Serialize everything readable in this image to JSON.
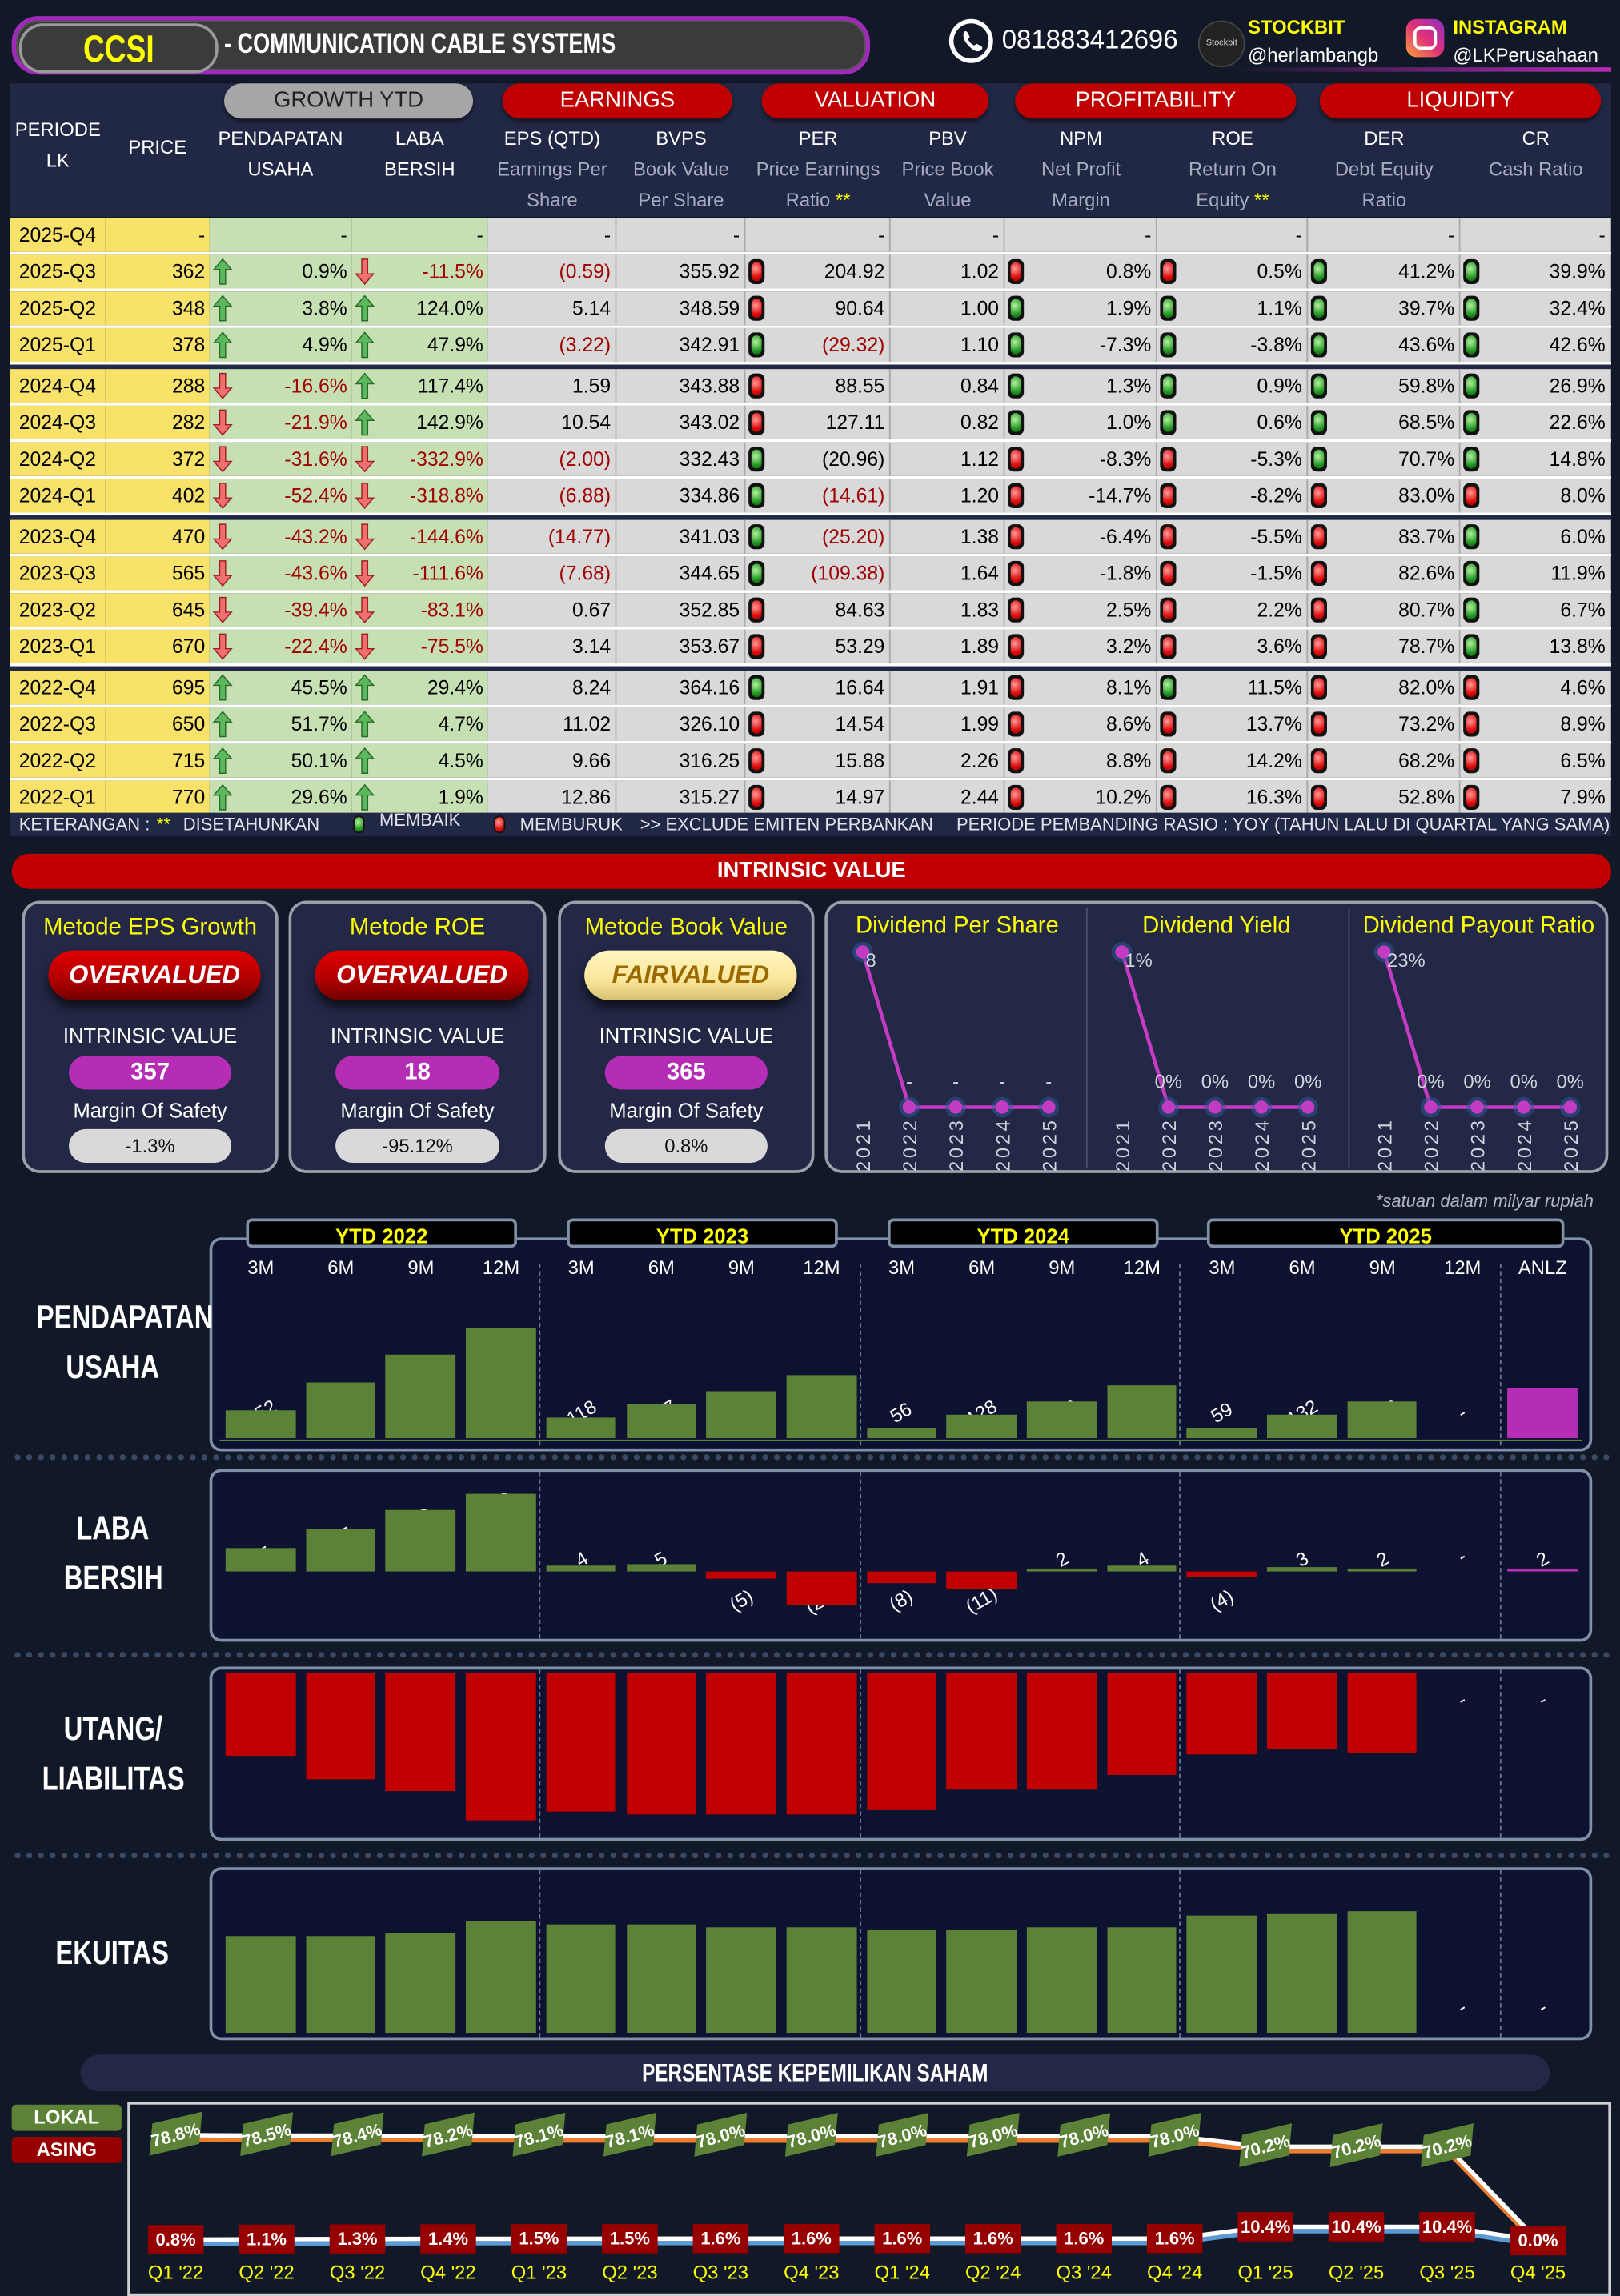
{
  "header": {
    "ticker": "CCSI",
    "company": "- COMMUNICATION CABLE SYSTEMS",
    "phone": "081883412696",
    "stockbit_label": "STOCKBIT",
    "stockbit_handle": "@herlambangb",
    "instagram_label": "INSTAGRAM",
    "instagram_handle": "@LKPerusahaan"
  },
  "table": {
    "groups": [
      "GROWTH YTD",
      "EARNINGS",
      "VALUATION",
      "PROFITABILITY",
      "LIQUIDITY"
    ],
    "columns": [
      {
        "t": "PERIODE",
        "t2": "LK",
        "s": ""
      },
      {
        "t": "PRICE",
        "t2": "",
        "s": ""
      },
      {
        "t": "PENDAPATAN",
        "t2": "USAHA",
        "s": ""
      },
      {
        "t": "LABA",
        "t2": "BERSIH",
        "s": ""
      },
      {
        "t": "EPS (QTD)",
        "s": "Earnings Per",
        "s2": "Share",
        "star": ""
      },
      {
        "t": "BVPS",
        "s": "Book Value",
        "s2": "Per Share",
        "star": ""
      },
      {
        "t": "PER",
        "s": "Price Earnings",
        "s2": "Ratio",
        "star": "**"
      },
      {
        "t": "PBV",
        "s": "Price Book",
        "s2": "Value",
        "star": ""
      },
      {
        "t": "NPM",
        "s": "Net Profit",
        "s2": "Margin",
        "star": ""
      },
      {
        "t": "ROE",
        "s": "Return On",
        "s2": "Equity",
        "star": "**"
      },
      {
        "t": "DER",
        "s": "Debt Equity",
        "s2": "Ratio",
        "star": ""
      },
      {
        "t": "CR",
        "s": "Cash Ratio",
        "s2": "",
        "star": ""
      }
    ],
    "rows": [
      {
        "p": "2025-Q4",
        "price": "-",
        "pend": [
          "",
          "-"
        ],
        "laba": [
          "",
          "-"
        ],
        "eps": "-",
        "bvps": "-",
        "per": [
          "",
          "-"
        ],
        "pbv": "-",
        "npm": [
          "",
          "-"
        ],
        "roe": [
          "",
          "-"
        ],
        "der": [
          "",
          "-"
        ],
        "cr": [
          "",
          "-"
        ]
      },
      {
        "p": "2025-Q3",
        "price": "362",
        "pend": [
          "up",
          "0.9%"
        ],
        "laba": [
          "down",
          "-11.5%"
        ],
        "eps": "(0.59)",
        "bvps": "355.92",
        "per": [
          "r",
          "204.92"
        ],
        "pbv": "1.02",
        "npm": [
          "r",
          "0.8%"
        ],
        "roe": [
          "r",
          "0.5%"
        ],
        "der": [
          "g",
          "41.2%"
        ],
        "cr": [
          "g",
          "39.9%"
        ]
      },
      {
        "p": "2025-Q2",
        "price": "348",
        "pend": [
          "up",
          "3.8%"
        ],
        "laba": [
          "up",
          "124.0%"
        ],
        "eps": "5.14",
        "bvps": "348.59",
        "per": [
          "r",
          "90.64"
        ],
        "pbv": "1.00",
        "npm": [
          "g",
          "1.9%"
        ],
        "roe": [
          "g",
          "1.1%"
        ],
        "der": [
          "g",
          "39.7%"
        ],
        "cr": [
          "g",
          "32.4%"
        ]
      },
      {
        "p": "2025-Q1",
        "price": "378",
        "pend": [
          "up",
          "4.9%"
        ],
        "laba": [
          "up",
          "47.9%"
        ],
        "eps": "(3.22)",
        "bvps": "342.91",
        "per": [
          "g",
          "(29.32)"
        ],
        "pbv": "1.10",
        "npm": [
          "g",
          "-7.3%"
        ],
        "roe": [
          "g",
          "-3.8%"
        ],
        "der": [
          "g",
          "43.6%"
        ],
        "cr": [
          "g",
          "42.6%"
        ]
      },
      {
        "p": "2024-Q4",
        "price": "288",
        "pend": [
          "down",
          "-16.6%"
        ],
        "laba": [
          "up",
          "117.4%"
        ],
        "eps": "1.59",
        "bvps": "343.88",
        "per": [
          "r",
          "88.55"
        ],
        "pbv": "0.84",
        "npm": [
          "g",
          "1.3%"
        ],
        "roe": [
          "g",
          "0.9%"
        ],
        "der": [
          "g",
          "59.8%"
        ],
        "cr": [
          "g",
          "26.9%"
        ]
      },
      {
        "p": "2024-Q3",
        "price": "282",
        "pend": [
          "down",
          "-21.9%"
        ],
        "laba": [
          "up",
          "142.9%"
        ],
        "eps": "10.54",
        "bvps": "343.02",
        "per": [
          "r",
          "127.11"
        ],
        "pbv": "0.82",
        "npm": [
          "g",
          "1.0%"
        ],
        "roe": [
          "g",
          "0.6%"
        ],
        "der": [
          "g",
          "68.5%"
        ],
        "cr": [
          "g",
          "22.6%"
        ]
      },
      {
        "p": "2024-Q2",
        "price": "372",
        "pend": [
          "down",
          "-31.6%"
        ],
        "laba": [
          "down",
          "-332.9%"
        ],
        "eps": "(2.00)",
        "bvps": "332.43",
        "per": [
          "g",
          "(20.96)"
        ],
        "pbv": "1.12",
        "npm": [
          "r",
          "-8.3%"
        ],
        "roe": [
          "r",
          "-5.3%"
        ],
        "der": [
          "g",
          "70.7%"
        ],
        "cr": [
          "g",
          "14.8%"
        ]
      },
      {
        "p": "2024-Q1",
        "price": "402",
        "pend": [
          "down",
          "-52.4%"
        ],
        "laba": [
          "down",
          "-318.8%"
        ],
        "eps": "(6.88)",
        "bvps": "334.86",
        "per": [
          "g",
          "(14.61)"
        ],
        "pbv": "1.20",
        "npm": [
          "r",
          "-14.7%"
        ],
        "roe": [
          "r",
          "-8.2%"
        ],
        "der": [
          "r",
          "83.0%"
        ],
        "cr": [
          "r",
          "8.0%"
        ]
      },
      {
        "p": "2023-Q4",
        "price": "470",
        "pend": [
          "down",
          "-43.2%"
        ],
        "laba": [
          "down",
          "-144.6%"
        ],
        "eps": "(14.77)",
        "bvps": "341.03",
        "per": [
          "g",
          "(25.20)"
        ],
        "pbv": "1.38",
        "npm": [
          "r",
          "-6.4%"
        ],
        "roe": [
          "r",
          "-5.5%"
        ],
        "der": [
          "r",
          "83.7%"
        ],
        "cr": [
          "g",
          "6.0%"
        ]
      },
      {
        "p": "2023-Q3",
        "price": "565",
        "pend": [
          "down",
          "-43.6%"
        ],
        "laba": [
          "down",
          "-111.6%"
        ],
        "eps": "(7.68)",
        "bvps": "344.65",
        "per": [
          "g",
          "(109.38)"
        ],
        "pbv": "1.64",
        "npm": [
          "r",
          "-1.8%"
        ],
        "roe": [
          "r",
          "-1.5%"
        ],
        "der": [
          "r",
          "82.6%"
        ],
        "cr": [
          "g",
          "11.9%"
        ]
      },
      {
        "p": "2023-Q2",
        "price": "645",
        "pend": [
          "down",
          "-39.4%"
        ],
        "laba": [
          "down",
          "-83.1%"
        ],
        "eps": "0.67",
        "bvps": "352.85",
        "per": [
          "r",
          "84.63"
        ],
        "pbv": "1.83",
        "npm": [
          "r",
          "2.5%"
        ],
        "roe": [
          "r",
          "2.2%"
        ],
        "der": [
          "r",
          "80.7%"
        ],
        "cr": [
          "g",
          "6.7%"
        ]
      },
      {
        "p": "2023-Q1",
        "price": "670",
        "pend": [
          "down",
          "-22.4%"
        ],
        "laba": [
          "down",
          "-75.5%"
        ],
        "eps": "3.14",
        "bvps": "353.67",
        "per": [
          "r",
          "53.29"
        ],
        "pbv": "1.89",
        "npm": [
          "r",
          "3.2%"
        ],
        "roe": [
          "r",
          "3.6%"
        ],
        "der": [
          "r",
          "78.7%"
        ],
        "cr": [
          "g",
          "13.8%"
        ]
      },
      {
        "p": "2022-Q4",
        "price": "695",
        "pend": [
          "up",
          "45.5%"
        ],
        "laba": [
          "up",
          "29.4%"
        ],
        "eps": "8.24",
        "bvps": "364.16",
        "per": [
          "g",
          "16.64"
        ],
        "pbv": "1.91",
        "npm": [
          "r",
          "8.1%"
        ],
        "roe": [
          "g",
          "11.5%"
        ],
        "der": [
          "r",
          "82.0%"
        ],
        "cr": [
          "r",
          "4.6%"
        ]
      },
      {
        "p": "2022-Q3",
        "price": "650",
        "pend": [
          "up",
          "51.7%"
        ],
        "laba": [
          "up",
          "4.7%"
        ],
        "eps": "11.02",
        "bvps": "326.10",
        "per": [
          "r",
          "14.54"
        ],
        "pbv": "1.99",
        "npm": [
          "r",
          "8.6%"
        ],
        "roe": [
          "r",
          "13.7%"
        ],
        "der": [
          "r",
          "73.2%"
        ],
        "cr": [
          "r",
          "8.9%"
        ]
      },
      {
        "p": "2022-Q2",
        "price": "715",
        "pend": [
          "up",
          "50.1%"
        ],
        "laba": [
          "up",
          "4.5%"
        ],
        "eps": "9.66",
        "bvps": "316.25",
        "per": [
          "r",
          "15.88"
        ],
        "pbv": "2.26",
        "npm": [
          "r",
          "8.8%"
        ],
        "roe": [
          "r",
          "14.2%"
        ],
        "der": [
          "r",
          "68.2%"
        ],
        "cr": [
          "r",
          "6.5%"
        ]
      },
      {
        "p": "2022-Q1",
        "price": "770",
        "pend": [
          "up",
          "29.6%"
        ],
        "laba": [
          "up",
          "1.9%"
        ],
        "eps": "12.86",
        "bvps": "315.27",
        "per": [
          "r",
          "14.97"
        ],
        "pbv": "2.44",
        "npm": [
          "r",
          "10.2%"
        ],
        "roe": [
          "r",
          "16.3%"
        ],
        "der": [
          "r",
          "52.8%"
        ],
        "cr": [
          "r",
          "7.9%"
        ]
      }
    ],
    "legend": {
      "keterangan": "KETERANGAN :",
      "stars": "**",
      "disetahunkan": "DISETAHUNKAN",
      "membaik": "MEMBAIK",
      "memburuk": "MEMBURUK",
      "exclude": ">> EXCLUDE EMITEN PERBANKAN",
      "periode": "PERIODE PEMBANDING RASIO : YOY (TAHUN LALU DI QUARTAL YANG SAMA)"
    }
  },
  "intrinsic": {
    "title": "INTRINSIC VALUE",
    "iv_label": "INTRINSIC VALUE",
    "mos_label": "Margin Of Safety",
    "cards": [
      {
        "title": "Metode EPS Growth",
        "status": "OVERVALUED",
        "kind": "over",
        "value": "357",
        "mos": "-1.3%"
      },
      {
        "title": "Metode ROE",
        "status": "OVERVALUED",
        "kind": "over",
        "value": "18",
        "mos": "-95.12%"
      },
      {
        "title": "Metode Book Value",
        "status": "FAIRVALUED",
        "kind": "fair",
        "value": "365",
        "mos": "0.8%"
      }
    ],
    "dividends": [
      {
        "title": "Dividend Per Share",
        "years": [
          "2021",
          "2022",
          "2023",
          "2024",
          "2025"
        ],
        "values": [
          8,
          0,
          0,
          0,
          0
        ],
        "labels": [
          "8",
          "-",
          "-",
          "-",
          "-"
        ]
      },
      {
        "title": "Dividend Yield",
        "years": [
          "2021",
          "2022",
          "2023",
          "2024",
          "2025"
        ],
        "values": [
          1,
          0,
          0,
          0,
          0
        ],
        "labels": [
          "1%",
          "0%",
          "0%",
          "0%",
          "0%"
        ]
      },
      {
        "title": "Dividend Payout Ratio",
        "years": [
          "2021",
          "2022",
          "2023",
          "2024",
          "2025"
        ],
        "values": [
          23,
          0,
          0,
          0,
          0
        ],
        "labels": [
          "23%",
          "0%",
          "0%",
          "0%",
          "0%"
        ]
      }
    ]
  },
  "financials": {
    "footnote": "*satuan dalam milyar rupiah",
    "ytd_labels": [
      "YTD 2022",
      "YTD 2023",
      "YTD 2024",
      "YTD 2025"
    ],
    "columns": [
      "3M",
      "6M",
      "9M",
      "12M",
      "3M",
      "6M",
      "9M",
      "12M",
      "3M",
      "6M",
      "9M",
      "12M",
      "3M",
      "6M",
      "9M",
      "12M",
      "ANLZ"
    ],
    "colors": {
      "positive": "#5b8236",
      "negative": "#c00000",
      "annualized": "#b52db5"
    },
    "charts": [
      {
        "key": "pendapatan",
        "label": [
          "PENDAPATAN",
          "USAHA"
        ],
        "values": [
          152,
          308,
          469,
          615,
          118,
          187,
          264,
          350,
          56,
          128,
          206,
          291,
          59,
          132,
          208,
          null,
          278
        ]
      },
      {
        "key": "laba",
        "label": [
          "LABA",
          "BERSIH"
        ],
        "values": [
          15,
          27,
          40,
          50,
          4,
          5,
          -5,
          -22,
          -8,
          -11,
          2,
          4,
          -4,
          3,
          2,
          null,
          2
        ]
      },
      {
        "key": "utang",
        "label": [
          "UTANG/",
          "LIABILITAS"
        ],
        "values": [
          200,
          259,
          286,
          358,
          334,
          342,
          342,
          343,
          333,
          282,
          282,
          247,
          199,
          185,
          196,
          null,
          null
        ]
      },
      {
        "key": "ekuitas",
        "label": [
          "EKUITAS"
        ],
        "values": [
          378,
          380,
          391,
          437,
          424,
          423,
          414,
          409,
          402,
          399,
          412,
          413,
          457,
          465,
          475,
          null,
          null
        ]
      }
    ]
  },
  "ownership": {
    "title": "PERSENTASE KEPEMILIKAN SAHAM",
    "legend_lokal": "LOKAL",
    "legend_asing": "ASING",
    "quarters": [
      "Q1 '22",
      "Q2 '22",
      "Q3 '22",
      "Q4 '22",
      "Q1 '23",
      "Q2 '23",
      "Q3 '23",
      "Q4 '23",
      "Q1 '24",
      "Q2 '24",
      "Q3 '24",
      "Q4 '24",
      "Q1 '25",
      "Q2 '25",
      "Q3 '25",
      "Q4 '25"
    ],
    "lokal": [
      78.8,
      78.5,
      78.4,
      78.2,
      78.1,
      78.1,
      78.0,
      78.0,
      78.0,
      78.0,
      78.0,
      78.0,
      70.2,
      70.2,
      70.2,
      0.0
    ],
    "asing": [
      0.8,
      1.1,
      1.3,
      1.4,
      1.5,
      1.5,
      1.6,
      1.6,
      1.6,
      1.6,
      1.6,
      1.6,
      10.4,
      10.4,
      10.4,
      0.0
    ]
  }
}
